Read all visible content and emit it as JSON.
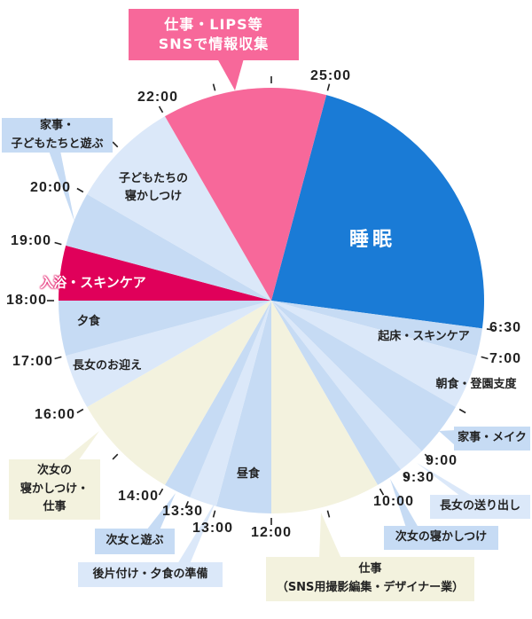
{
  "colors": {
    "sleep": "#1a7bd6",
    "sns": "#f7689a",
    "bath": "#e0005a",
    "blue_mid": "#c6dbf4",
    "blue_light": "#dbe8f9",
    "work": "#f3f2de",
    "tick": "#222222"
  },
  "segments": [
    {
      "start": 1,
      "end": 6.5,
      "color": "sleep",
      "label": "睡眠"
    },
    {
      "start": 6.5,
      "end": 7,
      "color": "blue_mid",
      "label": "起床・スキンケア"
    },
    {
      "start": 7,
      "end": 8,
      "color": "blue_light",
      "label": "朝食・登園支度"
    },
    {
      "start": 8,
      "end": 9,
      "color": "blue_mid",
      "label": "家事・メイク"
    },
    {
      "start": 9,
      "end": 9.5,
      "color": "blue_light",
      "label": "長女の送り出し"
    },
    {
      "start": 9.5,
      "end": 10,
      "color": "blue_mid",
      "label": "次女の寝かしつけ"
    },
    {
      "start": 10,
      "end": 12,
      "color": "work",
      "label": "仕事（SNS用撮影編集・デザイナー業）"
    },
    {
      "start": 12,
      "end": 13,
      "color": "blue_mid",
      "label": "昼食"
    },
    {
      "start": 13,
      "end": 13.5,
      "color": "blue_light",
      "label": "後片付け・夕食の準備"
    },
    {
      "start": 13.5,
      "end": 14,
      "color": "blue_mid",
      "label": "次女と遊ぶ"
    },
    {
      "start": 14,
      "end": 16,
      "color": "work",
      "label": "次女の寝かしつけ・仕事"
    },
    {
      "start": 16,
      "end": 17,
      "color": "blue_light",
      "label": "長女のお迎え"
    },
    {
      "start": 17,
      "end": 18,
      "color": "blue_mid",
      "label": "夕食"
    },
    {
      "start": 18,
      "end": 19,
      "color": "bath",
      "label": "入浴・スキンケア"
    },
    {
      "start": 19,
      "end": 20,
      "color": "blue_mid",
      "label": "家事・子どもたちと遊ぶ"
    },
    {
      "start": 20,
      "end": 22,
      "color": "blue_light",
      "label": "子どもたちの寝かしつけ"
    },
    {
      "start": 22,
      "end": 25,
      "color": "sns",
      "label": "仕事・LIPS等SNSで情報収集"
    }
  ],
  "tick_hours": [
    0,
    1,
    6.5,
    7,
    8,
    9,
    9.5,
    10,
    11,
    12,
    13,
    13.5,
    14,
    15,
    16,
    17,
    18,
    19,
    20,
    21,
    22,
    23
  ],
  "tick_labels": [
    "25:00",
    "6:30",
    "7:00",
    "9:00",
    "9:30",
    "10:00",
    "12:00",
    "13:00",
    "13:30",
    "14:00",
    "16:00",
    "17:00",
    "18:00",
    "19:00",
    "20:00",
    "22:00"
  ],
  "labels": {
    "sleep": "睡眠",
    "kids_bedtime_1": "子どもたちの",
    "kids_bedtime_2": "寝かしつけ",
    "bath": "入浴・スキンケア",
    "dinner": "夕食",
    "pickup": "長女のお迎え",
    "lunch": "昼食",
    "wakeup": "起床・スキンケア",
    "breakfast": "朝食・登園支度"
  },
  "callouts": {
    "sns_1": "仕事・LIPS等",
    "sns_2": "SNSで情報収集",
    "chores_play_1": "家事・",
    "chores_play_2": "子どもたちと遊ぶ",
    "nap_work_1": "次女の",
    "nap_work_2": "寝かしつけ・",
    "nap_work_3": "仕事",
    "play_second": "次女と遊ぶ",
    "cleanup": "後片付け・夕食の準備",
    "work_1": "仕事",
    "work_2": "（SNS用撮影編集・デザイナー業）",
    "nap_second": "次女の寝かしつけ",
    "send_off": "長女の送り出し",
    "chores_makeup": "家事・メイク"
  }
}
